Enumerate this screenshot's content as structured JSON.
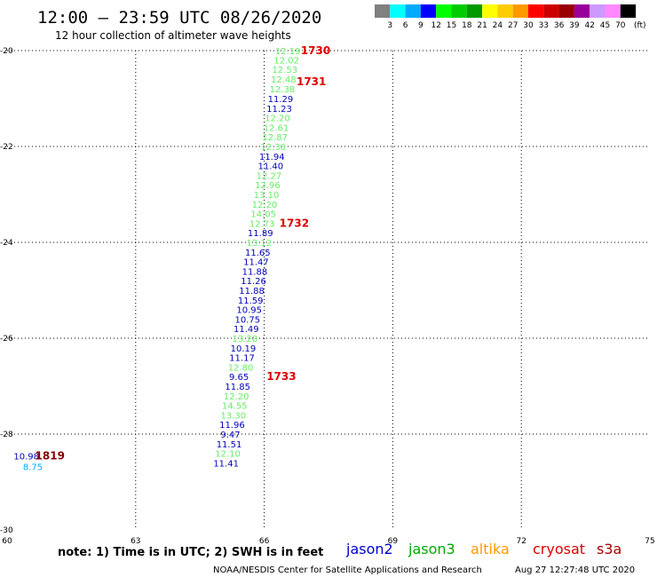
{
  "title": "12:00 – 23:59 UTC 08/26/2020",
  "subtitle": "12 hour collection of altimeter wave heights",
  "colorbar": {
    "colors": [
      "#808080",
      "#00ffff",
      "#00aaff",
      "#0000ff",
      "#00ff00",
      "#00cc00",
      "#009900",
      "#ffff00",
      "#ffcc00",
      "#ff9900",
      "#ff0000",
      "#cc0000",
      "#990000",
      "#990099",
      "#cc99ff",
      "#ff88ff",
      "#000000"
    ],
    "labels": [
      "3",
      "6",
      "9",
      "12",
      "15",
      "18",
      "21",
      "24",
      "27",
      "30",
      "33",
      "36",
      "39",
      "42",
      "45",
      "70"
    ],
    "unit": "(ft)"
  },
  "note": "note:  1) Time is in UTC;  2) SWH is in feet",
  "credit": "NOAA/NESDIS Center for Satellite Applications and Research",
  "timestamp": "Aug 27 12:27:48 UTC 2020",
  "legend": [
    {
      "name": "jason2",
      "color": "#0000cc"
    },
    {
      "name": "jason3",
      "color": "#00aa00"
    },
    {
      "name": "altika",
      "color": "#ff9900"
    },
    {
      "name": "cryosat",
      "color": "#dd0000"
    },
    {
      "name": "s3a",
      "color": "#aa0000"
    }
  ],
  "chart_data": {
    "type": "scatter",
    "xlim": [
      60,
      75
    ],
    "ylim": [
      -30,
      -20
    ],
    "xticks": [
      60,
      63,
      66,
      69,
      72,
      75
    ],
    "yticks": [
      -20,
      -22,
      -24,
      -26,
      -28,
      -30
    ],
    "grid": true,
    "points": [
      {
        "x": 66.55,
        "y": -20.0,
        "v": "12.19",
        "color": "#66ee66"
      },
      {
        "x": 66.52,
        "y": -20.19,
        "v": "12.02",
        "color": "#66ee66"
      },
      {
        "x": 66.48,
        "y": -20.39,
        "v": "12.53",
        "color": "#66ee66"
      },
      {
        "x": 66.45,
        "y": -20.59,
        "v": "12.48",
        "color": "#66ee66"
      },
      {
        "x": 66.42,
        "y": -20.8,
        "v": "12.38",
        "color": "#66ee66"
      },
      {
        "x": 66.38,
        "y": -21.0,
        "v": "11.29",
        "color": "#0000bb"
      },
      {
        "x": 66.35,
        "y": -21.2,
        "v": "11.23",
        "color": "#0000bb"
      },
      {
        "x": 66.31,
        "y": -21.4,
        "v": "12.20",
        "color": "#66ee66"
      },
      {
        "x": 66.28,
        "y": -21.6,
        "v": "12.61",
        "color": "#66ee66"
      },
      {
        "x": 66.25,
        "y": -21.8,
        "v": "12.87",
        "color": "#66ee66"
      },
      {
        "x": 66.21,
        "y": -22.0,
        "v": "12.36",
        "color": "#66ee66"
      },
      {
        "x": 66.18,
        "y": -22.2,
        "v": "11.94",
        "color": "#0000bb"
      },
      {
        "x": 66.15,
        "y": -22.4,
        "v": "11.40",
        "color": "#0000bb"
      },
      {
        "x": 66.11,
        "y": -22.6,
        "v": "12.27",
        "color": "#66ee66"
      },
      {
        "x": 66.08,
        "y": -22.8,
        "v": "12.96",
        "color": "#66ee66"
      },
      {
        "x": 66.05,
        "y": -23.0,
        "v": "13.10",
        "color": "#66ee66"
      },
      {
        "x": 66.01,
        "y": -23.2,
        "v": "12.20",
        "color": "#66ee66"
      },
      {
        "x": 65.98,
        "y": -23.4,
        "v": "14.05",
        "color": "#66ee66"
      },
      {
        "x": 65.95,
        "y": -23.6,
        "v": "12.73",
        "color": "#66ee66"
      },
      {
        "x": 65.91,
        "y": -23.8,
        "v": "11.89",
        "color": "#0000bb"
      },
      {
        "x": 65.88,
        "y": -24.0,
        "v": "13.12",
        "color": "#66ee66"
      },
      {
        "x": 65.85,
        "y": -24.2,
        "v": "11.65",
        "color": "#0000bb"
      },
      {
        "x": 65.81,
        "y": -24.4,
        "v": "11.47",
        "color": "#0000bb"
      },
      {
        "x": 65.78,
        "y": -24.6,
        "v": "11.88",
        "color": "#0000bb"
      },
      {
        "x": 65.75,
        "y": -24.8,
        "v": "11.26",
        "color": "#0000bb"
      },
      {
        "x": 65.71,
        "y": -25.0,
        "v": "11.88",
        "color": "#0000bb"
      },
      {
        "x": 65.68,
        "y": -25.2,
        "v": "11.59",
        "color": "#0000bb"
      },
      {
        "x": 65.65,
        "y": -25.4,
        "v": "10.95",
        "color": "#0000bb"
      },
      {
        "x": 65.61,
        "y": -25.6,
        "v": "10.75",
        "color": "#0000bb"
      },
      {
        "x": 65.58,
        "y": -25.8,
        "v": "11.49",
        "color": "#0000bb"
      },
      {
        "x": 65.55,
        "y": -26.0,
        "v": "13.28",
        "color": "#66ee66"
      },
      {
        "x": 65.51,
        "y": -26.2,
        "v": "10.19",
        "color": "#0000bb"
      },
      {
        "x": 65.48,
        "y": -26.4,
        "v": "11.17",
        "color": "#0000bb"
      },
      {
        "x": 65.45,
        "y": -26.6,
        "v": "12.80",
        "color": "#66ee66"
      },
      {
        "x": 65.41,
        "y": -26.8,
        "v": "9.65",
        "color": "#0000bb"
      },
      {
        "x": 65.38,
        "y": -27.0,
        "v": "11.85",
        "color": "#0000bb"
      },
      {
        "x": 65.35,
        "y": -27.2,
        "v": "12.20",
        "color": "#66ee66"
      },
      {
        "x": 65.31,
        "y": -27.4,
        "v": "14.55",
        "color": "#66ee66"
      },
      {
        "x": 65.28,
        "y": -27.6,
        "v": "13.30",
        "color": "#66ee66"
      },
      {
        "x": 65.25,
        "y": -27.8,
        "v": "11.96",
        "color": "#0000bb"
      },
      {
        "x": 65.21,
        "y": -28.0,
        "v": "9.47",
        "color": "#0000bb"
      },
      {
        "x": 65.18,
        "y": -28.2,
        "v": "11.51",
        "color": "#0000bb"
      },
      {
        "x": 65.15,
        "y": -28.4,
        "v": "12.10",
        "color": "#66ee66"
      },
      {
        "x": 65.11,
        "y": -28.6,
        "v": "11.41",
        "color": "#0000bb"
      },
      {
        "x": 60.45,
        "y": -28.45,
        "v": "10.98",
        "color": "#0000bb"
      },
      {
        "x": 60.6,
        "y": -28.68,
        "v": "8.75",
        "color": "#00aaff"
      }
    ],
    "pass_labels": [
      {
        "x": 67.2,
        "y": -20.0,
        "text": "1730",
        "color": "#dd0000"
      },
      {
        "x": 67.1,
        "y": -20.65,
        "text": "1731",
        "color": "#dd0000"
      },
      {
        "x": 66.7,
        "y": -23.6,
        "text": "1732",
        "color": "#dd0000"
      },
      {
        "x": 66.4,
        "y": -26.8,
        "text": "1733",
        "color": "#dd0000"
      },
      {
        "x": 61.0,
        "y": -28.45,
        "text": "1819",
        "color": "#880000"
      }
    ]
  }
}
